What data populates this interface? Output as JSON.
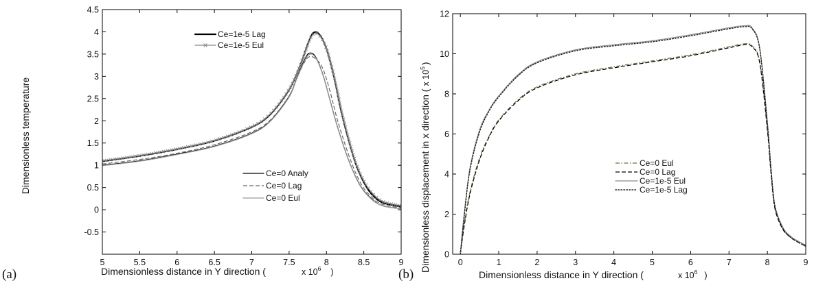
{
  "chart_data": [
    {
      "type": "line",
      "panel_label": "(a)",
      "xlabel": "Dimensionless distance in Y direction (",
      "x_multiplier": {
        "base": "x 10",
        "exponent": "6",
        "close": ")"
      },
      "ylabel": "Dimensionless temperature",
      "xlim": [
        5,
        9
      ],
      "ylim": [
        -1,
        4.5
      ],
      "x_ticks": [
        5,
        5.5,
        6,
        6.5,
        7,
        7.5,
        8,
        8.5,
        9
      ],
      "y_ticks": [
        -0.5,
        0,
        0.5,
        1,
        1.5,
        2,
        2.5,
        3,
        3.5,
        4,
        4.5
      ],
      "x_tick_labels": [
        "5",
        "5.5",
        "6",
        "6.5",
        "7",
        "7.5",
        "8",
        "8.5",
        "9"
      ],
      "y_tick_labels": [
        "-0.5",
        "0",
        "0.5",
        "1",
        "1.5",
        "2",
        "2.5",
        "3",
        "3.5",
        "4",
        "4.5"
      ],
      "grid": false,
      "legends": [
        {
          "placement": "top-center",
          "entries": [
            0,
            1
          ]
        },
        {
          "placement": "center-right",
          "entries": [
            2,
            3,
            4
          ]
        }
      ],
      "series": [
        {
          "name": "Ce=1e-5 Lag",
          "color": "#000000",
          "style": "solid-thick",
          "x": [
            5,
            5.5,
            6,
            6.5,
            7,
            7.25,
            7.5,
            7.65,
            7.75,
            7.82,
            7.9,
            8,
            8.1,
            8.2,
            8.3,
            8.4,
            8.5,
            8.6,
            8.75,
            9
          ],
          "y": [
            1.09,
            1.21,
            1.36,
            1.55,
            1.86,
            2.15,
            2.7,
            3.25,
            3.72,
            3.97,
            3.95,
            3.62,
            3.0,
            2.2,
            1.55,
            1.0,
            0.62,
            0.36,
            0.16,
            0.07
          ]
        },
        {
          "name": "Ce=1e-5 Eul",
          "color": "#888888",
          "style": "solid-cross",
          "x": [
            5,
            5.5,
            6,
            6.5,
            7,
            7.25,
            7.5,
            7.65,
            7.75,
            7.82,
            7.9,
            8,
            8.1,
            8.2,
            8.3,
            8.4,
            8.5,
            8.6,
            8.75,
            9
          ],
          "y": [
            1.1,
            1.22,
            1.37,
            1.56,
            1.87,
            2.16,
            2.71,
            3.25,
            3.7,
            3.94,
            3.93,
            3.62,
            3.02,
            2.24,
            1.58,
            1.03,
            0.65,
            0.4,
            0.19,
            0.09
          ]
        },
        {
          "name": "Ce=0 Analy",
          "color": "#000000",
          "style": "solid",
          "x": [
            5,
            5.5,
            6,
            6.5,
            7,
            7.25,
            7.5,
            7.6,
            7.7,
            7.77,
            7.85,
            7.95,
            8.05,
            8.15,
            8.3,
            8.45,
            8.6,
            8.75,
            9
          ],
          "y": [
            1.0,
            1.1,
            1.25,
            1.43,
            1.72,
            2.0,
            2.55,
            2.95,
            3.35,
            3.52,
            3.45,
            3.05,
            2.45,
            1.85,
            1.1,
            0.55,
            0.25,
            0.09,
            0.02
          ]
        },
        {
          "name": "Ce=0 Lag",
          "color": "#666666",
          "style": "dashed",
          "x": [
            5,
            5.5,
            6,
            6.5,
            7,
            7.25,
            7.5,
            7.6,
            7.7,
            7.77,
            7.85,
            7.95,
            8.05,
            8.15,
            8.3,
            8.45,
            8.6,
            8.75,
            9
          ],
          "y": [
            1.03,
            1.13,
            1.27,
            1.46,
            1.75,
            2.02,
            2.56,
            2.94,
            3.3,
            3.44,
            3.4,
            3.18,
            2.65,
            2.0,
            1.22,
            0.62,
            0.29,
            0.12,
            0.04
          ]
        },
        {
          "name": "Ce=0 Eul",
          "color": "#999999",
          "style": "solid",
          "x": [
            5,
            5.5,
            6,
            6.5,
            7,
            7.25,
            7.5,
            7.6,
            7.7,
            7.77,
            7.85,
            7.95,
            8.05,
            8.15,
            8.3,
            8.45,
            8.6,
            8.75,
            9
          ],
          "y": [
            0.99,
            1.09,
            1.24,
            1.42,
            1.71,
            1.99,
            2.53,
            2.93,
            3.32,
            3.49,
            3.43,
            3.04,
            2.44,
            1.84,
            1.09,
            0.54,
            0.24,
            0.09,
            0.02
          ]
        }
      ]
    },
    {
      "type": "line",
      "panel_label": "(b)",
      "xlabel": "Dimensionless distance in Y direction (",
      "x_multiplier": {
        "base": "x 10",
        "exponent": "6",
        "close": ")"
      },
      "ylabel": "Dimensionless displacement in x direction (",
      "y_multiplier": {
        "base": "x 10",
        "exponent": "5",
        "close": ")"
      },
      "xlim": [
        -0.2,
        9
      ],
      "ylim": [
        0,
        12
      ],
      "x_ticks": [
        0,
        1,
        2,
        3,
        4,
        5,
        6,
        7,
        8,
        9
      ],
      "y_ticks": [
        0,
        2,
        4,
        6,
        8,
        10,
        12
      ],
      "x_tick_labels": [
        "0",
        "1",
        "2",
        "3",
        "4",
        "5",
        "6",
        "7",
        "8",
        "9"
      ],
      "y_tick_labels": [
        "0",
        "2",
        "4",
        "6",
        "8",
        "10",
        "12"
      ],
      "grid": false,
      "legends": [
        {
          "placement": "center",
          "entries": [
            0,
            1,
            2,
            3
          ]
        }
      ],
      "series": [
        {
          "name": "Ce=0 Eul",
          "color": "#6b6b3a",
          "style": "dashdot",
          "x": [
            0,
            0.1,
            0.25,
            0.5,
            0.75,
            1,
            1.5,
            2,
            3,
            4,
            5,
            6,
            7,
            7.4,
            7.6,
            7.8,
            8,
            8.1,
            8.2,
            8.4,
            8.6,
            8.8,
            9
          ],
          "y": [
            0,
            1.5,
            3.1,
            4.8,
            5.9,
            6.7,
            7.7,
            8.35,
            9.0,
            9.35,
            9.65,
            9.95,
            10.35,
            10.5,
            10.4,
            9.6,
            6.3,
            4.0,
            2.3,
            1.3,
            0.9,
            0.65,
            0.45
          ]
        },
        {
          "name": "Ce=0 Lag",
          "color": "#000000",
          "style": "dashed",
          "x": [
            0,
            0.1,
            0.25,
            0.5,
            0.75,
            1,
            1.5,
            2,
            3,
            4,
            5,
            6,
            7,
            7.4,
            7.6,
            7.8,
            8,
            8.1,
            8.2,
            8.4,
            8.6,
            8.8,
            9
          ],
          "y": [
            0,
            1.4,
            3.0,
            4.7,
            5.85,
            6.65,
            7.65,
            8.3,
            8.95,
            9.3,
            9.6,
            9.9,
            10.3,
            10.45,
            10.35,
            9.55,
            6.2,
            3.9,
            2.25,
            1.25,
            0.85,
            0.6,
            0.4
          ]
        },
        {
          "name": "Ce=1e-5 Eul",
          "color": "#888888",
          "style": "solid",
          "x": [
            0,
            0.1,
            0.25,
            0.5,
            0.75,
            1,
            1.5,
            2,
            3,
            4,
            5,
            6,
            7,
            7.4,
            7.6,
            7.8,
            8,
            8.1,
            8.2,
            8.4,
            8.6,
            8.8,
            9
          ],
          "y": [
            0,
            2.0,
            4.3,
            6.2,
            7.2,
            7.9,
            8.95,
            9.6,
            10.2,
            10.45,
            10.65,
            10.95,
            11.3,
            11.4,
            11.3,
            10.3,
            6.6,
            4.2,
            2.4,
            1.35,
            0.9,
            0.65,
            0.45
          ]
        },
        {
          "name": "Ce=1e-5 Lag",
          "color": "#222222",
          "style": "dotted",
          "x": [
            0,
            0.1,
            0.25,
            0.5,
            0.75,
            1,
            1.5,
            2,
            3,
            4,
            5,
            6,
            7,
            7.4,
            7.6,
            7.8,
            8,
            8.1,
            8.2,
            8.4,
            8.6,
            8.8,
            9
          ],
          "y": [
            0,
            1.9,
            4.2,
            6.1,
            7.15,
            7.85,
            8.9,
            9.55,
            10.15,
            10.4,
            10.6,
            10.9,
            11.25,
            11.35,
            11.25,
            10.25,
            6.5,
            4.1,
            2.35,
            1.3,
            0.85,
            0.6,
            0.4
          ]
        }
      ]
    }
  ]
}
